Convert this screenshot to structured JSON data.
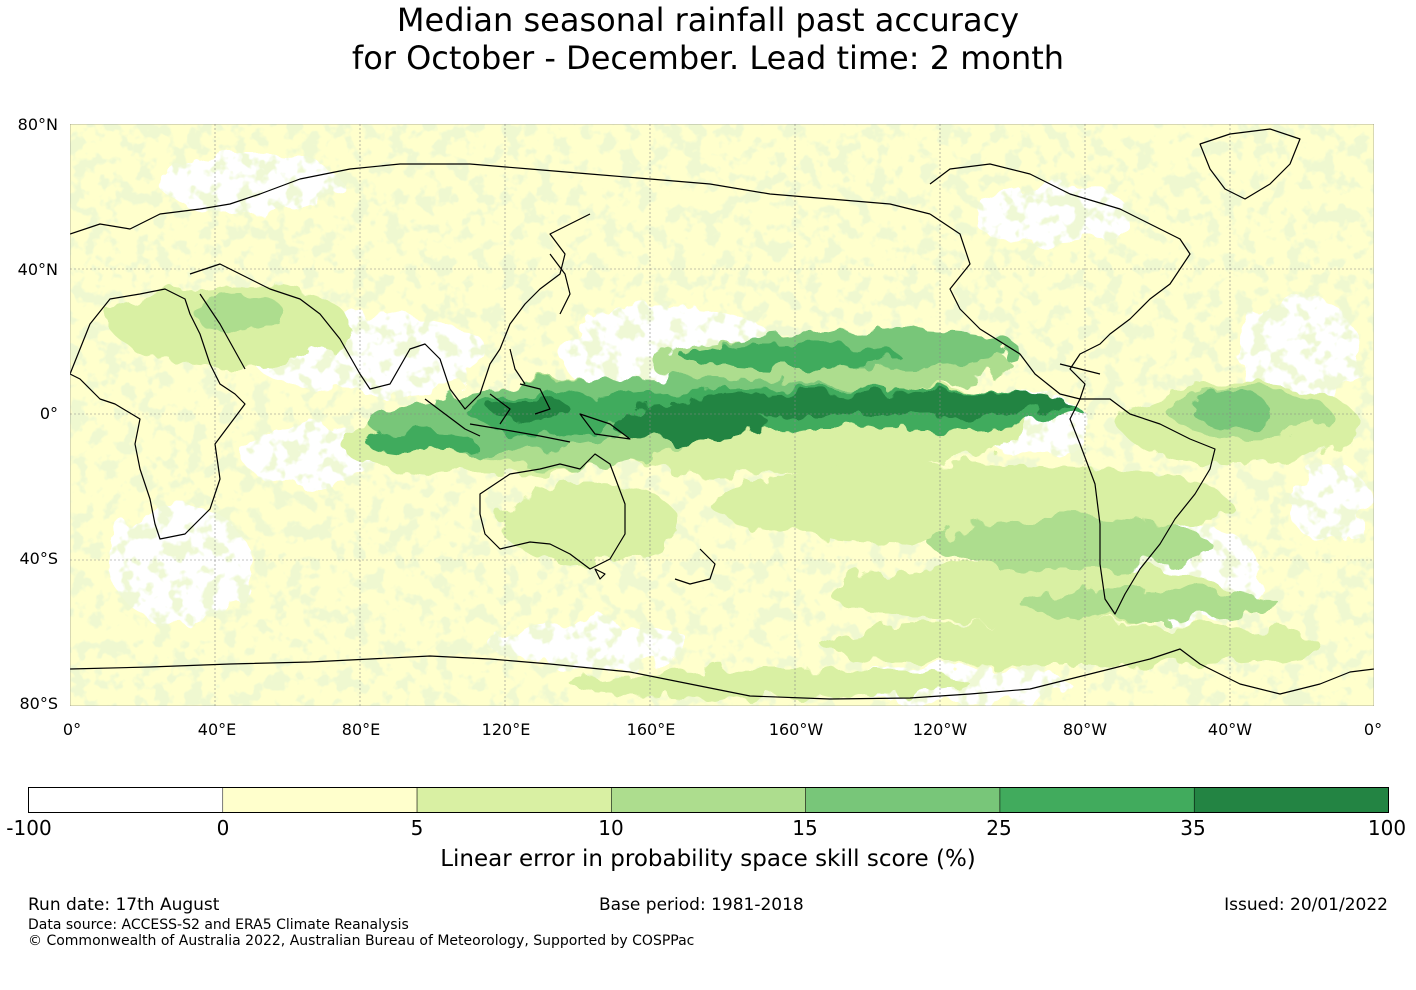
{
  "title_line1": "Median seasonal rainfall past accuracy",
  "title_line2": "for October - December. Lead time: 2 month",
  "lat_labels": [
    "80°N",
    "40°N",
    "0°",
    "40°S",
    "80°S"
  ],
  "lon_labels": [
    "0°",
    "40°E",
    "80°E",
    "120°E",
    "160°E",
    "160°W",
    "120°W",
    "80°W",
    "40°W",
    "0°"
  ],
  "colorbar": {
    "ticks": [
      "-100",
      "0",
      "5",
      "10",
      "15",
      "25",
      "35",
      "100"
    ],
    "colors": [
      "#ffffff",
      "#ffffcc",
      "#d9f0a3",
      "#addd8e",
      "#78c679",
      "#41ab5d",
      "#238443"
    ],
    "label": "Linear error in probability space skill score (%)"
  },
  "footer": {
    "run_date": "Run date: 17th August",
    "base_period": "Base period: 1981-2018",
    "issued": "Issued: 20/01/2022",
    "data_source": "Data source: ACCESS-S2 and ERA5 Climate Reanalysis",
    "copyright": "© Commonwealth of Australia 2022, Australian Bureau of Meteorology, Supported by COSPPac"
  }
}
